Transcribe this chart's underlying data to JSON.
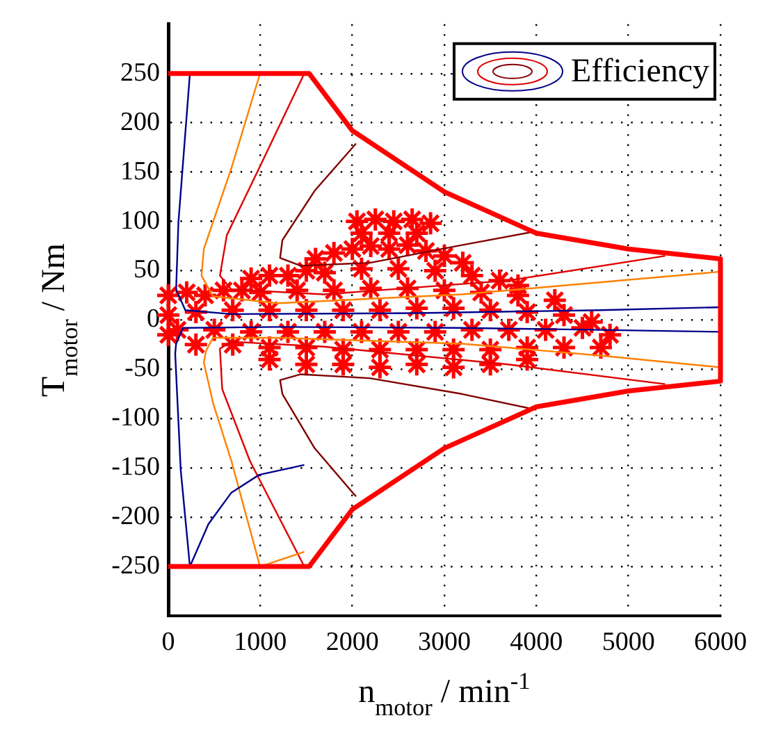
{
  "chart_data": {
    "type": "line",
    "xlabel": "n$_{motor}$ / min$^{-1}$",
    "ylabel": "T$_{motor}$ / Nm",
    "xlim": [
      0,
      6000
    ],
    "xticks": [
      0,
      1000,
      2000,
      3000,
      4000,
      5000,
      6000
    ],
    "ylim": [
      -300,
      300
    ],
    "yticks": [
      -250,
      -200,
      -150,
      -100,
      -50,
      0,
      50,
      100,
      150,
      200,
      250
    ],
    "grid": true,
    "legend": "top right",
    "marker": "none",
    "line_style": "solid",
    "series": [
      {
        "color": "#ff0000",
        "x": [
          0,
          1530,
          2000,
          3000,
          4000,
          5000,
          6000,
          6000,
          5000,
          4000,
          3000,
          2000,
          1530,
          0
        ],
        "values": [
          250,
          250,
          192,
          130,
          88,
          72,
          62,
          -62,
          -72,
          -88,
          -130,
          -192,
          -250,
          -250
        ]
      },
      {
        "name": "Efficiency",
        "color": "#00008b",
        "x": [
          235,
          110,
          85,
          185,
          686,
          2690,
          4690,
          6000
        ],
        "values": [
          250,
          99,
          31,
          10,
          6,
          7,
          10,
          13
        ]
      },
      {
        "color": "#00008b",
        "x": [
          6000,
          4690,
          3190,
          1190,
          160,
          85,
          75,
          135,
          235,
          436,
          686,
          987,
          1478
        ],
        "values": [
          -12,
          -10,
          -8,
          -7,
          -8,
          -24,
          -34,
          -152,
          -250,
          -207,
          -175,
          -157,
          -147
        ]
      },
      {
        "color": "#ff8000",
        "x": [
          997,
          686,
          386,
          361,
          486,
          1190,
          3190,
          6000
        ],
        "values": [
          250,
          154,
          72,
          45,
          24,
          17,
          26,
          49
        ]
      },
      {
        "color": "#ff8000",
        "x": [
          6000,
          4690,
          3190,
          1190,
          486,
          411,
          386,
          486,
          686,
          997,
          1478
        ],
        "values": [
          -48,
          -36,
          -24,
          -18,
          -18,
          -31,
          -43,
          -84,
          -143,
          -250,
          -235
        ]
      },
      {
        "color": "#e00000",
        "x": [
          1478,
          987,
          636,
          561,
          686,
          1690,
          3690,
          5400
        ],
        "values": [
          250,
          154,
          86,
          45,
          31,
          26,
          40,
          65
        ]
      },
      {
        "color": "#e00000",
        "x": [
          5400,
          3690,
          1690,
          686,
          561,
          586,
          887,
          1478
        ],
        "values": [
          -65,
          -45,
          -27,
          -22,
          -29,
          -70,
          -143,
          -250
        ]
      },
      {
        "color": "#800000",
        "x": [
          2040,
          1590,
          1240,
          1215,
          1440,
          2190,
          3190,
          4000
        ],
        "values": [
          179,
          131,
          81,
          63,
          55,
          58,
          76,
          90
        ]
      },
      {
        "color": "#800000",
        "x": [
          2040,
          1590,
          1240,
          1215,
          1440,
          2190,
          3190,
          4000
        ],
        "values": [
          -179,
          -130,
          -75,
          -61,
          -55,
          -59,
          -75,
          -91
        ]
      },
      {
        "type": "scatter",
        "marker": "cross",
        "color": "#ff0000",
        "x": [
          2050,
          2250,
          2450,
          2650,
          2850,
          2100,
          2400,
          2700,
          1600,
          1800,
          2000,
          2200,
          2400,
          2600,
          2800,
          3000,
          3200,
          1500,
          900,
          1100,
          1300,
          1700,
          2100,
          2500,
          2900,
          3300,
          3600,
          3800,
          0,
          200,
          400,
          600,
          800,
          1000,
          1400,
          1800,
          2200,
          2600,
          3000,
          3400,
          3800,
          4200,
          0,
          300,
          700,
          1100,
          1500,
          1900,
          2300,
          2700,
          3100,
          3500,
          3900,
          4300,
          4600,
          100,
          500,
          900,
          1300,
          1700,
          2100,
          2500,
          2900,
          3300,
          3700,
          4100,
          4500,
          4800,
          0,
          300,
          700,
          1100,
          1500,
          1900,
          2300,
          2700,
          3100,
          3500,
          3900,
          4300,
          4700,
          1100,
          1500,
          1900,
          2300,
          2700,
          3100,
          3500,
          3900
        ],
        "values": [
          100,
          102,
          100,
          102,
          98,
          88,
          88,
          88,
          62,
          68,
          72,
          75,
          72,
          76,
          70,
          65,
          58,
          50,
          42,
          45,
          45,
          48,
          52,
          52,
          50,
          45,
          40,
          35,
          25,
          28,
          25,
          30,
          30,
          28,
          30,
          30,
          32,
          32,
          30,
          28,
          25,
          20,
          5,
          8,
          10,
          10,
          10,
          10,
          10,
          12,
          12,
          10,
          8,
          5,
          -2,
          -10,
          -10,
          -12,
          -12,
          -12,
          -12,
          -12,
          -12,
          -10,
          -10,
          -10,
          -8,
          -15,
          -15,
          -25,
          -25,
          -28,
          -28,
          -30,
          -30,
          -30,
          -30,
          -30,
          -28,
          -28,
          -28,
          -40,
          -45,
          -45,
          -48,
          -45,
          -48,
          -45,
          -40
        ]
      }
    ]
  }
}
